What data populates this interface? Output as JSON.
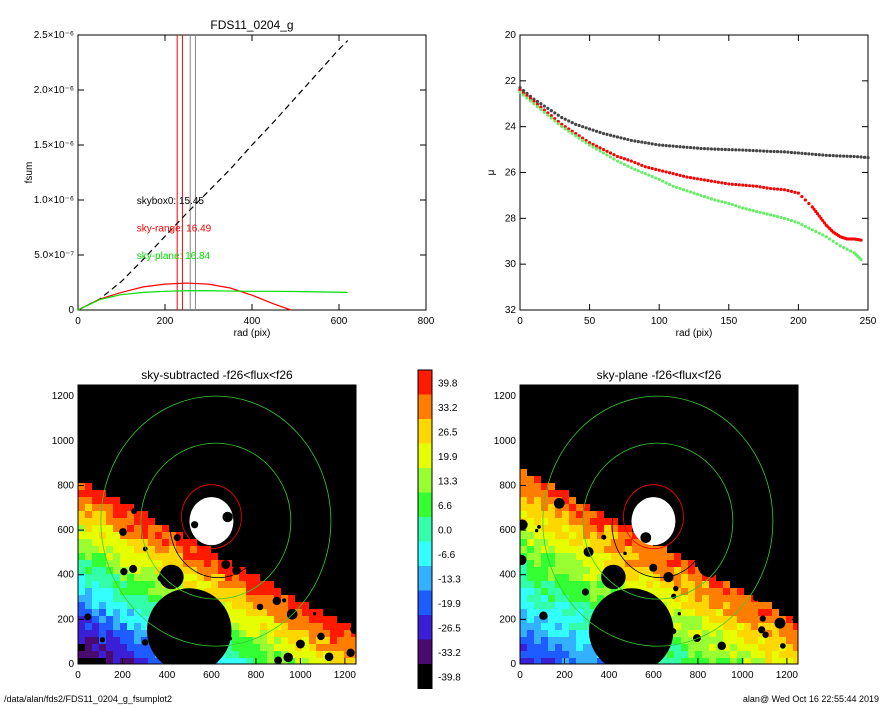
{
  "footer": {
    "path": "/data/alan/fds2/FDS11_0204_g_fsumplot2",
    "user_stamp": "alan@  Wed Oct 16 22:55:44 2019"
  },
  "chart_data": [
    {
      "id": "fsum",
      "type": "line",
      "title": "FDS11_0204_g",
      "xlabel": "rad (pix)",
      "ylabel": "fsum",
      "xlim": [
        0,
        800
      ],
      "ylim": [
        0,
        2.5e-06
      ],
      "xticks": [
        "0",
        "200",
        "400",
        "600",
        "800"
      ],
      "yticks": [
        "0",
        "5.0×10⁻⁷",
        "1.0×10⁻⁶",
        "1.5×10⁻⁶",
        "2.0×10⁻⁶",
        "2.5×10⁻⁶"
      ],
      "ytick_values": [
        0,
        5e-07,
        1e-06,
        1.5e-06,
        2e-06,
        2.5e-06
      ],
      "vlines": [
        {
          "x": 228,
          "color": "#ff0000"
        },
        {
          "x": 240,
          "color": "#ff0000"
        },
        {
          "x": 258,
          "color": "#888888"
        },
        {
          "x": 270,
          "color": "#888888"
        }
      ],
      "series": [
        {
          "color": "#000000",
          "style": "dashed",
          "x": [
            0,
            50,
            100,
            150,
            200,
            250,
            300,
            350,
            400,
            450,
            500,
            550,
            600,
            620
          ],
          "y": [
            0,
            1e-07,
            2.6e-07,
            4.6e-07,
            6.7e-07,
            8.8e-07,
            1.08e-06,
            1.28e-06,
            1.5e-06,
            1.71e-06,
            1.93e-06,
            2.15e-06,
            2.37e-06,
            2.45e-06
          ]
        },
        {
          "color": "#ff0000",
          "style": "solid",
          "x": [
            0,
            50,
            100,
            150,
            200,
            250,
            300,
            350,
            400,
            450,
            490
          ],
          "y": [
            0,
            1e-07,
            1.6e-07,
            2.1e-07,
            2.35e-07,
            2.45e-07,
            2.35e-07,
            2e-07,
            1.35e-07,
            5.5e-08,
            0
          ]
        },
        {
          "color": "#00dd00",
          "style": "solid",
          "x": [
            0,
            50,
            100,
            150,
            200,
            250,
            300,
            350,
            400,
            450,
            500,
            550,
            620
          ],
          "y": [
            0,
            9.5e-08,
            1.4e-07,
            1.6e-07,
            1.7e-07,
            1.75e-07,
            1.75e-07,
            1.72e-07,
            1.7e-07,
            1.7e-07,
            1.68e-07,
            1.65e-07,
            1.6e-07
          ]
        }
      ],
      "annotations": [
        {
          "text": "skybox0: 15.45",
          "x": 135,
          "y": 1e-06,
          "color": "#000000"
        },
        {
          "text": "sky-range: 16.49",
          "x": 135,
          "y": 7.5e-07,
          "color": "#ff0000"
        },
        {
          "text": "sky-plane: 16.84",
          "x": 135,
          "y": 5e-07,
          "color": "#00dd00"
        }
      ]
    },
    {
      "id": "profile",
      "type": "scatter",
      "xlabel": "rad (pix)",
      "ylabel": "μ",
      "xlim": [
        0,
        250
      ],
      "ylim": [
        32,
        20
      ],
      "xticks": [
        "0",
        "50",
        "100",
        "150",
        "200",
        "250"
      ],
      "yticks": [
        "20",
        "22",
        "24",
        "26",
        "28",
        "30",
        "32"
      ],
      "ytick_values": [
        20,
        22,
        24,
        26,
        28,
        30,
        32
      ],
      "series": [
        {
          "color": "#444444",
          "x": [
            0,
            10,
            20,
            30,
            40,
            50,
            60,
            70,
            80,
            90,
            100,
            110,
            120,
            130,
            140,
            150,
            160,
            170,
            180,
            190,
            200,
            210,
            220,
            230,
            240,
            250
          ],
          "y": [
            22.3,
            22.8,
            23.2,
            23.6,
            23.9,
            24.1,
            24.3,
            24.45,
            24.6,
            24.7,
            24.8,
            24.85,
            24.9,
            24.95,
            24.98,
            25.0,
            25.02,
            25.05,
            25.08,
            25.1,
            25.15,
            25.2,
            25.25,
            25.28,
            25.3,
            25.35
          ]
        },
        {
          "color": "#ff0000",
          "x": [
            0,
            10,
            20,
            30,
            40,
            50,
            60,
            70,
            80,
            90,
            100,
            110,
            120,
            130,
            140,
            150,
            160,
            170,
            180,
            190,
            200,
            210,
            215,
            220,
            225,
            230,
            235,
            240,
            245
          ],
          "y": [
            22.4,
            22.9,
            23.4,
            23.9,
            24.3,
            24.7,
            25.0,
            25.3,
            25.5,
            25.75,
            25.9,
            26.05,
            26.2,
            26.3,
            26.4,
            26.5,
            26.55,
            26.6,
            26.7,
            26.75,
            26.9,
            27.5,
            27.9,
            28.3,
            28.6,
            28.8,
            28.9,
            28.9,
            28.95
          ]
        },
        {
          "color": "#66ee66",
          "x": [
            0,
            10,
            20,
            30,
            40,
            50,
            60,
            70,
            80,
            90,
            100,
            110,
            120,
            130,
            140,
            150,
            160,
            170,
            180,
            190,
            200,
            210,
            220,
            230,
            240,
            245
          ],
          "y": [
            22.5,
            23.0,
            23.5,
            24.0,
            24.4,
            24.8,
            25.15,
            25.5,
            25.8,
            26.05,
            26.3,
            26.6,
            26.8,
            27.0,
            27.2,
            27.35,
            27.55,
            27.7,
            27.85,
            28.0,
            28.2,
            28.5,
            28.8,
            29.2,
            29.5,
            29.8
          ]
        }
      ]
    },
    {
      "id": "img-sub",
      "type": "heatmap",
      "title": "sky-subtracted -f26<flux<f26",
      "xlim": [
        0,
        1250
      ],
      "ylim": [
        0,
        1250
      ],
      "xticks": [
        "0",
        "200",
        "400",
        "600",
        "800",
        "1000",
        "1200"
      ],
      "yticks": [
        "0",
        "200",
        "400",
        "600",
        "800",
        "1000",
        "1200"
      ]
    },
    {
      "id": "img-plane",
      "type": "heatmap",
      "title": "sky-plane -f26<flux<f26",
      "xlim": [
        0,
        1250
      ],
      "ylim": [
        0,
        1250
      ],
      "xticks": [
        "0",
        "200",
        "400",
        "600",
        "800",
        "1000",
        "1200"
      ],
      "yticks": [
        "0",
        "200",
        "400",
        "600",
        "800",
        "1000",
        "1200"
      ]
    }
  ],
  "colorbar": {
    "labels": [
      "39.8",
      "33.2",
      "26.5",
      "19.9",
      "13.3",
      "6.6",
      "0.0",
      "-6.6",
      "-13.3",
      "-19.9",
      "-26.5",
      "-33.2",
      "-39.8"
    ],
    "colors": [
      "#ff1a00",
      "#ff7d00",
      "#ffd700",
      "#e6ff00",
      "#99ff33",
      "#33ff33",
      "#33ffaa",
      "#33ffff",
      "#33b0ff",
      "#1f5cff",
      "#3a1fd6",
      "#4a0a70",
      "#000000"
    ]
  }
}
